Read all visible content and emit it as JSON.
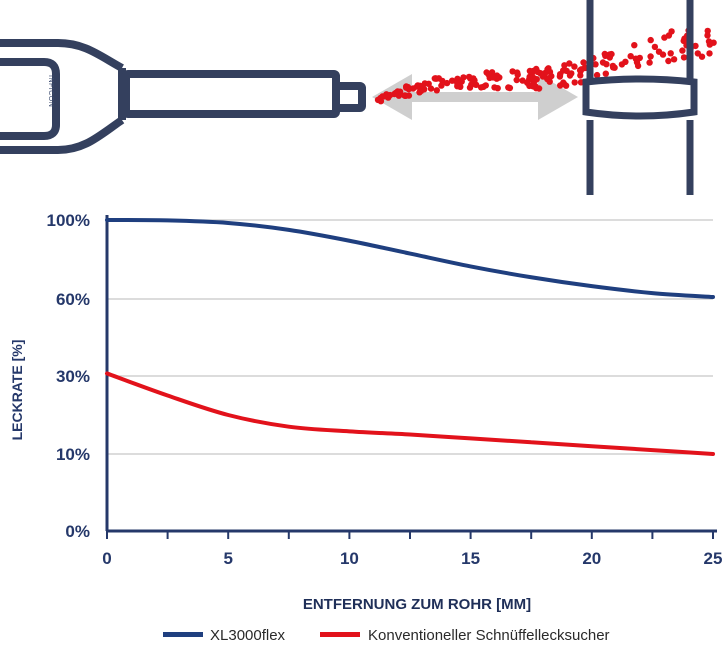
{
  "illustration": {
    "logo_text": "INFICON",
    "colors": {
      "device": "#34405e",
      "arrow": "#cfcfcf",
      "particles": "#e2121b",
      "pipe": "#34405e"
    }
  },
  "chart_data": {
    "type": "line",
    "title": "",
    "xlabel": "ENTFERNUNG ZUM ROHR [MM]",
    "ylabel": "LECKRATE [%]",
    "xlim": [
      0,
      25
    ],
    "x_ticks": [
      0,
      5,
      10,
      15,
      20,
      25
    ],
    "x_tick_labels": [
      "0",
      "5",
      "10",
      "15",
      "20",
      "25"
    ],
    "y_ticks": [
      0,
      10,
      30,
      60,
      100
    ],
    "y_tick_labels": [
      "0%",
      "10%",
      "30%",
      "60%",
      "100%"
    ],
    "y_scale": "nonlinear",
    "grid": "horizontal",
    "legend_position": "bottom",
    "series": [
      {
        "name": "XL3000flex",
        "color": "#1f3f7f",
        "x": [
          0,
          2.5,
          5,
          7.5,
          10,
          12.5,
          15,
          17.5,
          20,
          22.5,
          25
        ],
        "y": [
          100,
          99.8,
          98.5,
          95,
          89.5,
          83,
          76.5,
          71,
          66.5,
          63,
          61
        ]
      },
      {
        "name": "Konventioneller Schnüffellecksucher",
        "color": "#e2121b",
        "x": [
          0,
          2.5,
          5,
          7.5,
          10,
          12.5,
          15,
          17.5,
          20,
          22.5,
          25
        ],
        "y": [
          31,
          25,
          20,
          17,
          15.8,
          15,
          14,
          13,
          12,
          11,
          10
        ]
      }
    ]
  }
}
